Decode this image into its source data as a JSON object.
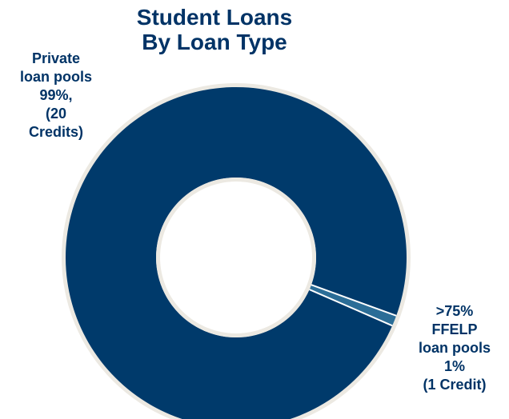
{
  "chart_data": {
    "type": "pie",
    "variant": "donut",
    "title_lines": [
      "Student Loans",
      "By Loan Type"
    ],
    "categories": [
      ">75% FFELP loan pools",
      "Private loan pools"
    ],
    "values": [
      1,
      99
    ],
    "unit": "percent",
    "counts": [
      1,
      20
    ],
    "label_lines": [
      [
        ">75%",
        "FFELP",
        "loan pools",
        "1%",
        "(1 Credit)"
      ],
      [
        "Private",
        "loan pools",
        "99%,",
        "(20",
        "Credits)"
      ]
    ],
    "colors": [
      "#2b6d97",
      "#003a6b"
    ],
    "ring_color": "#ece9e2",
    "separator_color": "#ffffff"
  }
}
